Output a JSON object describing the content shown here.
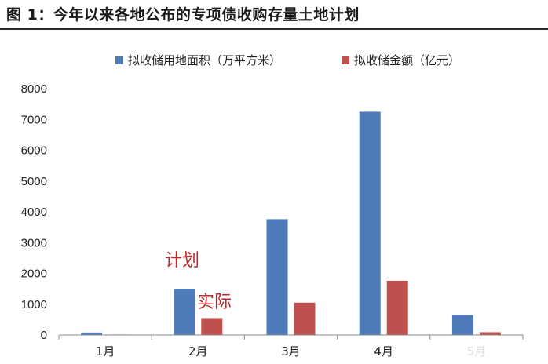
{
  "header": {
    "title": "图 1：今年以来各地公布的专项债收购存量土地计划"
  },
  "annotations": {
    "plan": "计划",
    "actual": "实际"
  },
  "colors": {
    "area": "#4f7bba",
    "amount": "#c0504d"
  },
  "chart_data": {
    "type": "bar",
    "categories": [
      "1月",
      "2月",
      "3月",
      "4月",
      "5月"
    ],
    "series": [
      {
        "name": "拟收储用地面积（万平方米）",
        "values": [
          80,
          1500,
          3760,
          7250,
          650
        ]
      },
      {
        "name": "拟收储金额（亿元）",
        "values": [
          15,
          550,
          1050,
          1760,
          90
        ]
      }
    ],
    "yticks": [
      "0",
      "1000",
      "2000",
      "3000",
      "4000",
      "5000",
      "6000",
      "7000",
      "8000"
    ],
    "ylim": [
      0,
      8000
    ],
    "legend_position": "top-center",
    "grid": false
  }
}
